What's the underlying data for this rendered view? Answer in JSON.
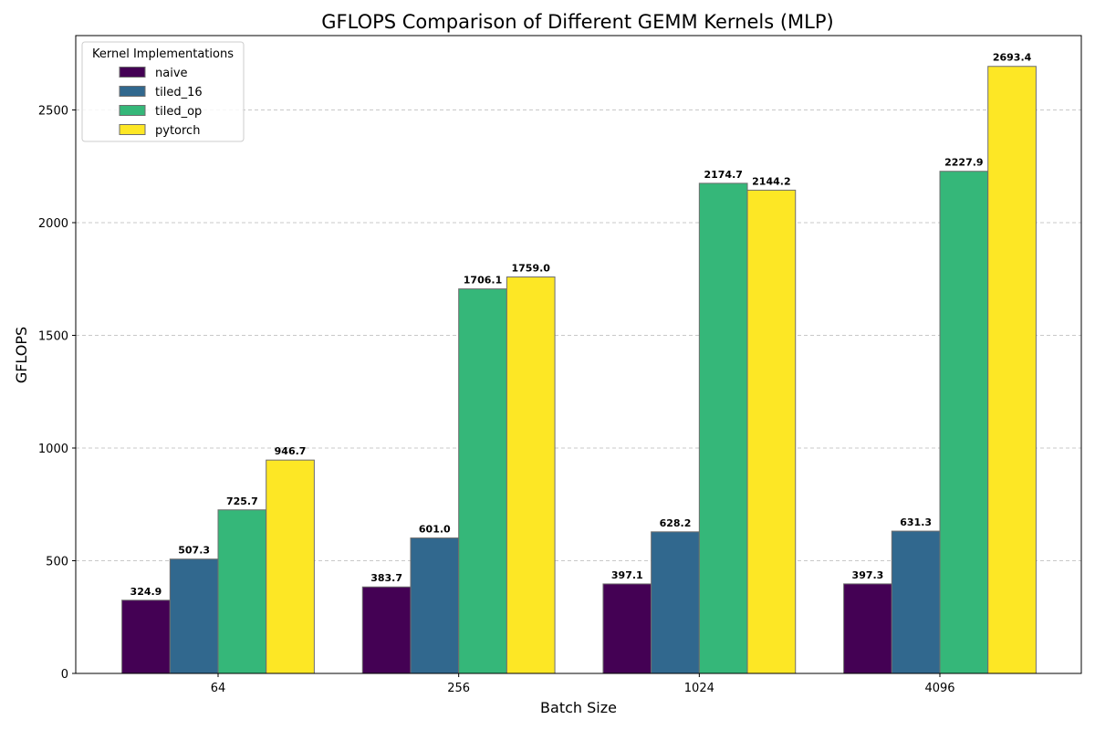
{
  "chart_data": {
    "type": "bar",
    "title": "GFLOPS Comparison of Different GEMM Kernels (MLP)",
    "xlabel": "Batch Size",
    "ylabel": "GFLOPS",
    "categories": [
      "64",
      "256",
      "1024",
      "4096"
    ],
    "ylim": [
      0,
      2830
    ],
    "yticks": [
      0,
      500,
      1000,
      1500,
      2000,
      2500
    ],
    "grid": "y-dashed",
    "legend": {
      "title": "Kernel Implementations",
      "placement": "top-left"
    },
    "series": [
      {
        "name": "naive",
        "color": "#440154",
        "values": [
          324.9,
          383.7,
          397.1,
          397.3
        ],
        "labels": [
          "324.9",
          "383.7",
          "397.1",
          "397.3"
        ]
      },
      {
        "name": "tiled_16",
        "color": "#31688e",
        "values": [
          507.3,
          601.0,
          628.2,
          631.3
        ],
        "labels": [
          "507.3",
          "601.0",
          "628.2",
          "631.3"
        ]
      },
      {
        "name": "tiled_op",
        "color": "#35b779",
        "values": [
          725.7,
          1706.1,
          2174.7,
          2227.9
        ],
        "labels": [
          "725.7",
          "1706.1",
          "2174.7",
          "2227.9"
        ]
      },
      {
        "name": "pytorch",
        "color": "#fde725",
        "values": [
          946.7,
          1759.0,
          2144.2,
          2693.4
        ],
        "labels": [
          "946.7",
          "1759.0",
          "2144.2",
          "2693.4"
        ]
      }
    ]
  }
}
